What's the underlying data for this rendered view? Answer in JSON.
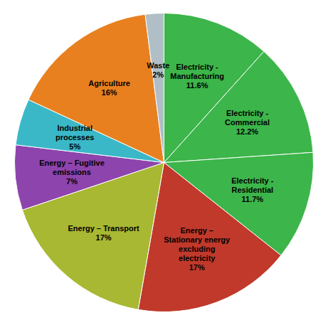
{
  "chart_data": {
    "type": "pie",
    "categories": [
      "Electricity -\nManufacturing\n11.6%",
      "Electricity -\nCommercial\n12.2%",
      "Electricity -\nResidential\n11.7%",
      "Energy –\nStationary energy\nexcluding\nelectricity\n17%",
      "Energy – Transport\n17%",
      "Energy – Fugitive\nemissions\n7%",
      "Industrial\nprocesses\n5%",
      "Agriculture\n16%",
      "Waste\n2%"
    ],
    "values": [
      11.6,
      12.2,
      11.7,
      17.0,
      17.0,
      7.0,
      5.0,
      16.0,
      2.0
    ],
    "colors": [
      "#3cb54a",
      "#3cb54a",
      "#3cb54a",
      "#c0392b",
      "#a8b832",
      "#8e44ad",
      "#3ab8c8",
      "#e88020",
      "#b0bec5"
    ]
  }
}
